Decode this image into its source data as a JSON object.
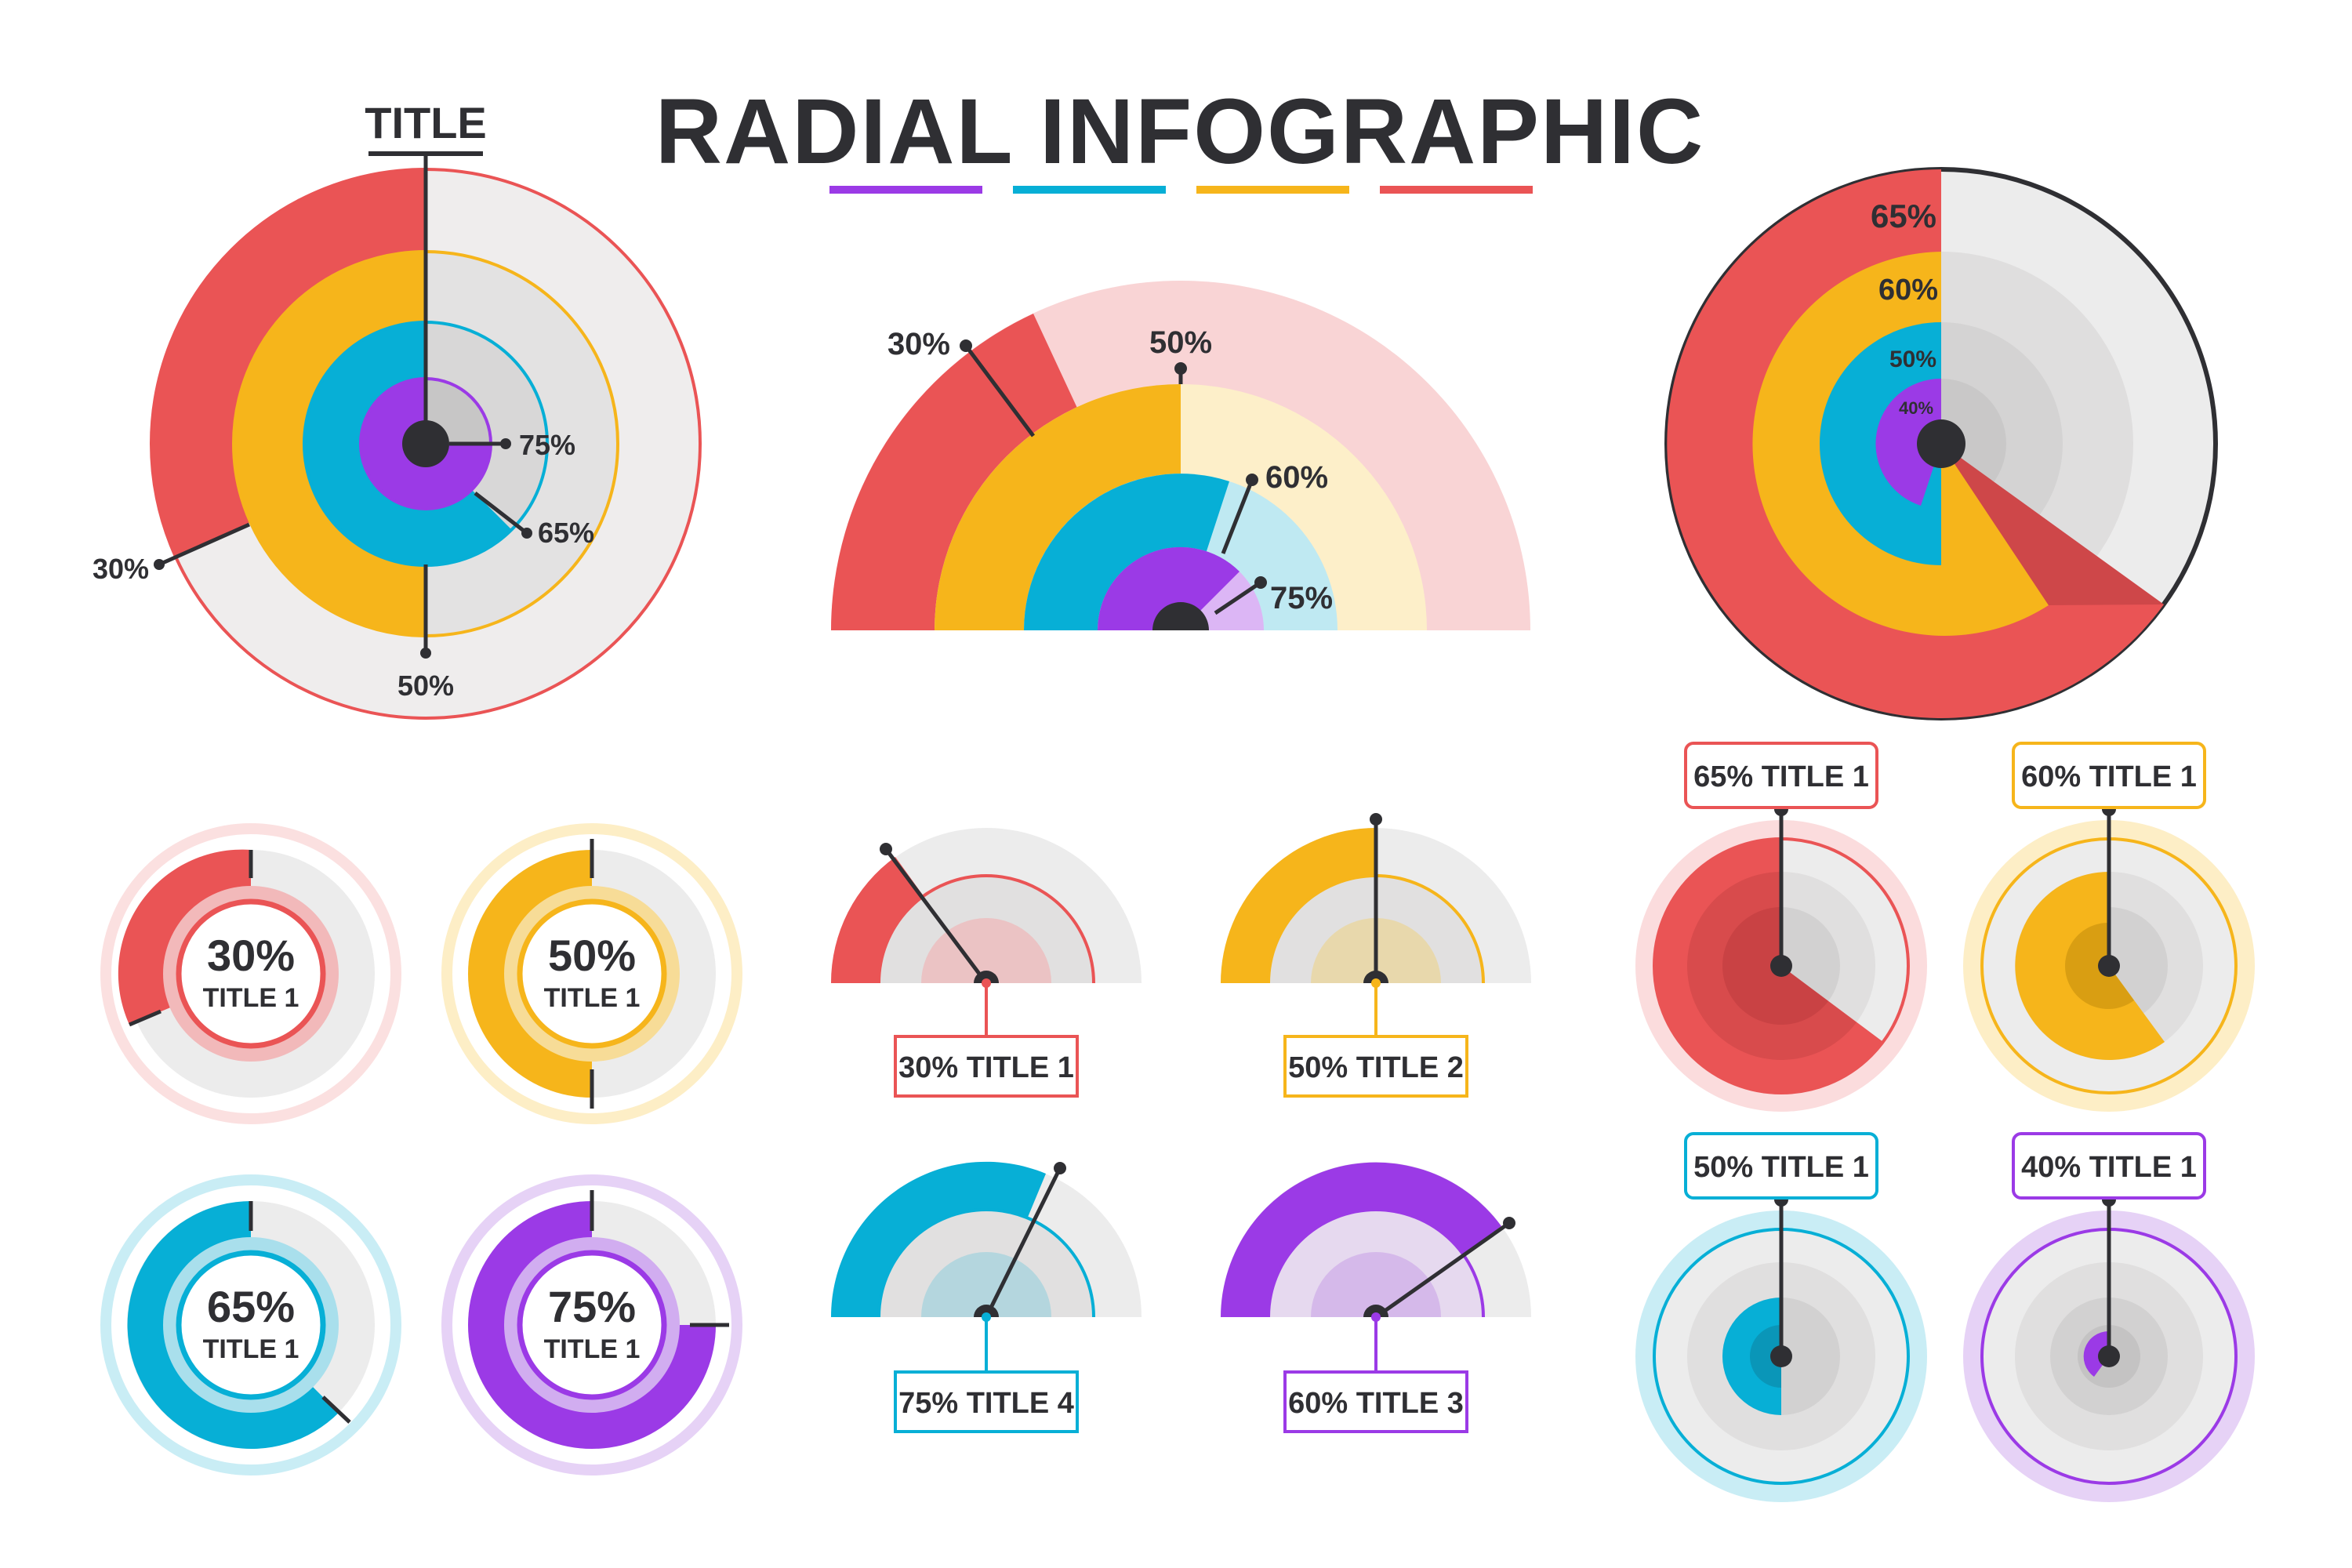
{
  "title": "RADIAL INFOGRAPHIC",
  "palette": {
    "purple": "#9b3ae6",
    "blue": "#07afd6",
    "yellow": "#f6b51b",
    "red": "#ea5455",
    "gray": "#efeded",
    "dark": "#2f2f33"
  },
  "left_chart": {
    "heading": "TITLE",
    "labels": {
      "red": "30%",
      "yellow": "50%",
      "blue": "65%",
      "purple": "75%"
    }
  },
  "center_chart": {
    "labels": {
      "red": "30%",
      "yellow": "50%",
      "blue": "60%",
      "purple": "75%"
    }
  },
  "right_chart": {
    "labels": {
      "red": "65%",
      "yellow": "60%",
      "blue": "50%",
      "purple": "40%"
    }
  },
  "small_donuts": [
    {
      "value": "30%",
      "title": "TITLE 1",
      "color": "red"
    },
    {
      "value": "50%",
      "title": "TITLE 1",
      "color": "yellow"
    },
    {
      "value": "65%",
      "title": "TITLE 1",
      "color": "blue"
    },
    {
      "value": "75%",
      "title": "TITLE 1",
      "color": "purple"
    }
  ],
  "semi_gauges": [
    {
      "label": "30% TITLE 1",
      "color": "red"
    },
    {
      "label": "50% TITLE 2",
      "color": "yellow"
    },
    {
      "label": "75% TITLE 4",
      "color": "blue"
    },
    {
      "label": "60% TITLE 3",
      "color": "purple"
    }
  ],
  "dials": [
    {
      "label": "65% TITLE 1",
      "color": "red"
    },
    {
      "label": "60% TITLE 1",
      "color": "yellow"
    },
    {
      "label": "50% TITLE 1",
      "color": "blue"
    },
    {
      "label": "40% TITLE 1",
      "color": "purple"
    }
  ]
}
